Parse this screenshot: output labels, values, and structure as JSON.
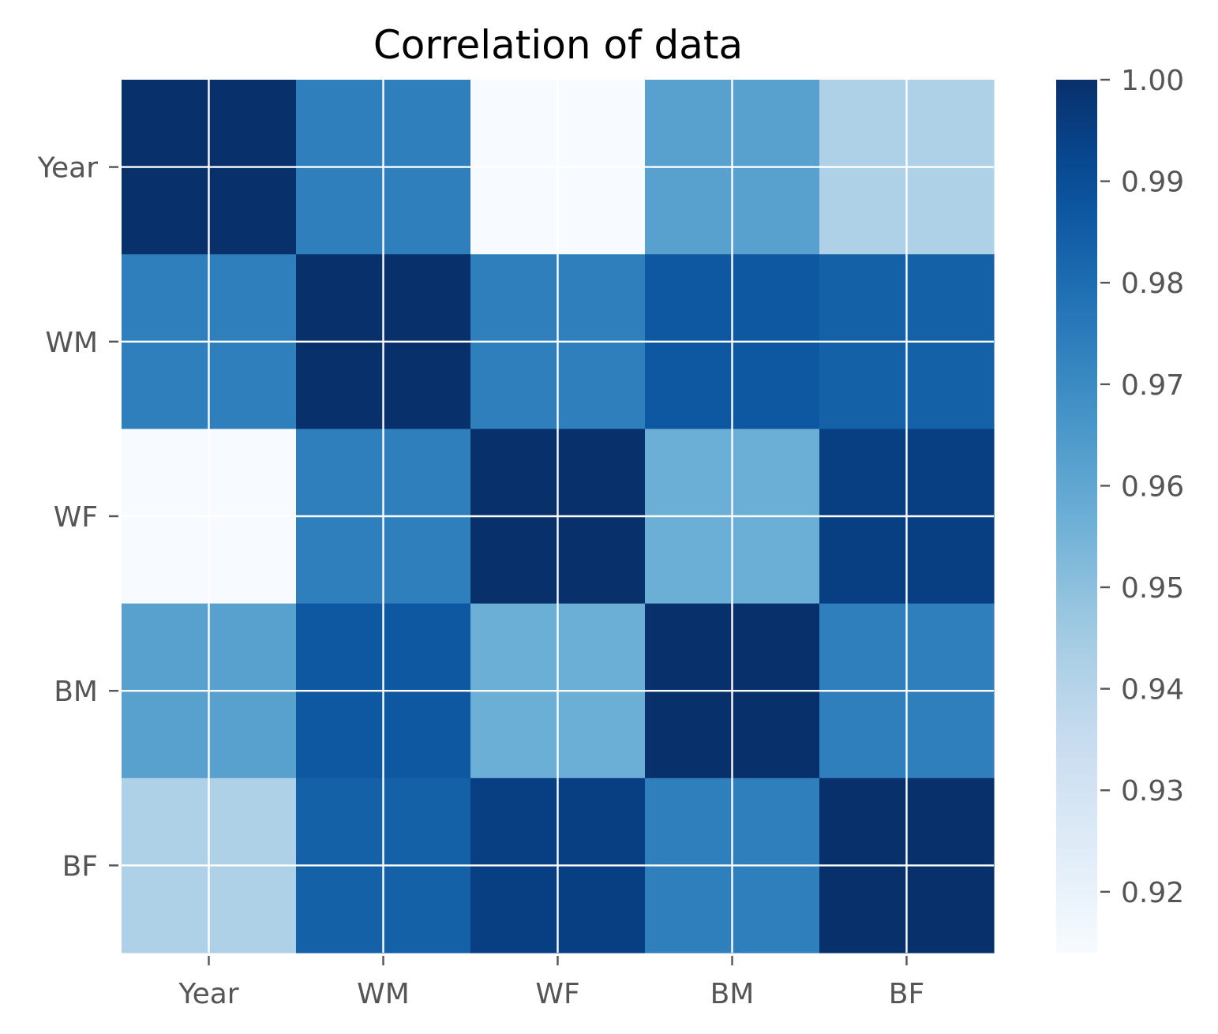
{
  "chart_data": {
    "type": "heatmap",
    "title": "Correlation of data",
    "xlabel": "",
    "ylabel": "",
    "x_categories": [
      "Year",
      "WM",
      "WF",
      "BM",
      "BF"
    ],
    "y_categories": [
      "Year",
      "WM",
      "WF",
      "BM",
      "BF"
    ],
    "matrix": [
      [
        1.0,
        0.974,
        0.914,
        0.962,
        0.942
      ],
      [
        0.974,
        1.0,
        0.974,
        0.987,
        0.984
      ],
      [
        0.914,
        0.974,
        1.0,
        0.957,
        0.995
      ],
      [
        0.962,
        0.987,
        0.957,
        1.0,
        0.974
      ],
      [
        0.942,
        0.984,
        0.995,
        0.974,
        1.0
      ]
    ],
    "colormap": "Blues",
    "colorbar": {
      "min": 0.914,
      "max": 1.0,
      "ticks": [
        "1.00",
        "0.99",
        "0.98",
        "0.97",
        "0.96",
        "0.95",
        "0.94",
        "0.93",
        "0.92"
      ],
      "tick_values": [
        1.0,
        0.99,
        0.98,
        0.97,
        0.96,
        0.95,
        0.94,
        0.93,
        0.92
      ]
    },
    "grid": true,
    "grid_color": "#ffffff",
    "tick_label_color": "#555555"
  }
}
